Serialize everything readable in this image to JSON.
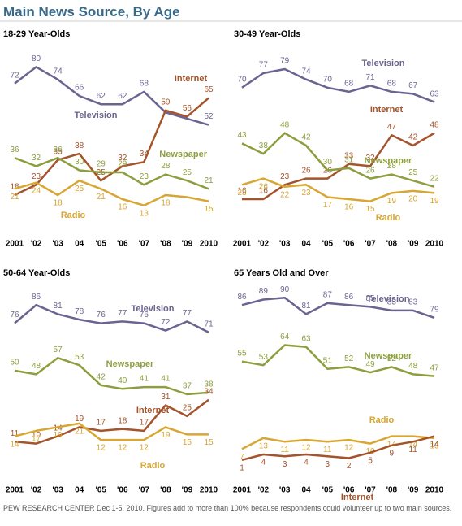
{
  "title": "Main News Source, By Age",
  "footnote": "PEW RESEARCH CENTER Dec 1-5, 2010. Figures add to more than 100% because respondents could volunteer up to two main sources.",
  "chart_data": [
    {
      "type": "line",
      "title": "18-29 Year-Olds",
      "categories": [
        "2001",
        "'02",
        "'03",
        "04",
        "'05",
        "'06",
        "'07",
        "'08",
        "'09",
        "2010"
      ],
      "ylim": [
        5,
        90
      ],
      "series": [
        {
          "name": "Television",
          "color": "#6b6390",
          "values": [
            72,
            80,
            74,
            66,
            62,
            62,
            68,
            58,
            55,
            52
          ],
          "value_labels": [
            "72",
            "80",
            "74",
            "66",
            "62",
            "62",
            "68",
            null,
            null,
            "52"
          ]
        },
        {
          "name": "Internet",
          "color": "#a4532a",
          "values": [
            18,
            23,
            35,
            38,
            25,
            32,
            34,
            59,
            56,
            65
          ]
        },
        {
          "name": "Newspaper",
          "color": "#8c9f3e",
          "values": [
            36,
            32,
            36,
            30,
            29,
            29,
            23,
            28,
            25,
            21
          ]
        },
        {
          "name": "Radio",
          "color": "#d8a632",
          "values": [
            21,
            24,
            18,
            25,
            21,
            16,
            13,
            18,
            17,
            15
          ],
          "value_labels": [
            "21",
            "24",
            "18",
            "25",
            "21",
            "16",
            "13",
            "18",
            null,
            "15"
          ]
        }
      ]
    },
    {
      "type": "line",
      "title": "30-49 Year-Olds",
      "categories": [
        "2001",
        "'02",
        "'03",
        "04",
        "'05",
        "'06",
        "'07",
        "'08",
        "'09",
        "2010"
      ],
      "ylim": [
        5,
        90
      ],
      "series": [
        {
          "name": "Television",
          "color": "#6b6390",
          "values": [
            70,
            77,
            79,
            74,
            70,
            68,
            71,
            68,
            67,
            63
          ]
        },
        {
          "name": "Internet",
          "color": "#a4532a",
          "values": [
            16,
            16,
            23,
            26,
            26,
            33,
            32,
            47,
            42,
            48
          ]
        },
        {
          "name": "Newspaper",
          "color": "#8c9f3e",
          "values": [
            43,
            38,
            48,
            42,
            30,
            31,
            26,
            28,
            25,
            22
          ]
        },
        {
          "name": "Radio",
          "color": "#d8a632",
          "values": [
            23,
            26,
            22,
            23,
            17,
            16,
            15,
            19,
            20,
            19
          ]
        }
      ]
    },
    {
      "type": "line",
      "title": "50-64 Year-Olds",
      "categories": [
        "2001",
        "'02",
        "'03",
        "04",
        "'05",
        "'06",
        "'07",
        "'08",
        "'09",
        "2010"
      ],
      "ylim": [
        0,
        95
      ],
      "series": [
        {
          "name": "Television",
          "color": "#6b6390",
          "values": [
            76,
            86,
            81,
            78,
            76,
            77,
            76,
            72,
            77,
            71
          ]
        },
        {
          "name": "Newspaper",
          "color": "#8c9f3e",
          "values": [
            50,
            48,
            57,
            53,
            42,
            40,
            41,
            41,
            37,
            38
          ]
        },
        {
          "name": "Internet",
          "color": "#a4532a",
          "values": [
            11,
            10,
            14,
            19,
            17,
            18,
            17,
            31,
            25,
            34
          ]
        },
        {
          "name": "Radio",
          "color": "#d8a632",
          "values": [
            14,
            17,
            19,
            21,
            12,
            12,
            12,
            19,
            15,
            15
          ]
        }
      ]
    },
    {
      "type": "line",
      "title": "65 Years Old and Over",
      "categories": [
        "2001",
        "'02",
        "'03",
        "04",
        "'05",
        "'06",
        "'07",
        "'08",
        "'09",
        "2010"
      ],
      "ylim": [
        0,
        95
      ],
      "series": [
        {
          "name": "Television",
          "color": "#6b6390",
          "values": [
            86,
            89,
            90,
            81,
            87,
            86,
            85,
            83,
            83,
            79
          ]
        },
        {
          "name": "Newspaper",
          "color": "#8c9f3e",
          "values": [
            55,
            53,
            64,
            63,
            51,
            52,
            49,
            52,
            48,
            47
          ]
        },
        {
          "name": "Radio",
          "color": "#d8a632",
          "values": [
            7,
            13,
            11,
            12,
            11,
            12,
            10,
            14,
            14,
            13
          ]
        },
        {
          "name": "Internet",
          "color": "#a4532a",
          "values": [
            1,
            4,
            3,
            4,
            3,
            2,
            5,
            9,
            11,
            14
          ]
        }
      ]
    }
  ]
}
